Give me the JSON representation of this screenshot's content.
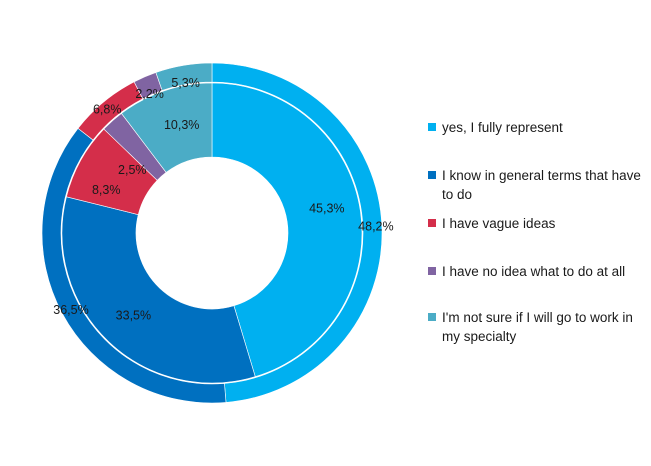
{
  "chart_data": {
    "type": "pie",
    "subtype": "double-donut",
    "title": "",
    "legend_position": "right",
    "categories": [
      "yes, I fully represent",
      "I know in general terms that have to do",
      "I have vague ideas",
      "I have no idea what to do at all",
      "I'm not sure if I will go to work in my specialty"
    ],
    "colors": [
      "#00B0F0",
      "#0070C0",
      "#D42E4A",
      "#8064A2",
      "#4BACC6"
    ],
    "series": [
      {
        "ring": "outer",
        "values": [
          48.2,
          36.5,
          6.8,
          2.2,
          5.3
        ],
        "labels": [
          "48,2%",
          "36,5%",
          "6,8%",
          "2,2%",
          "5,3%"
        ]
      },
      {
        "ring": "inner",
        "values": [
          45.3,
          33.5,
          8.3,
          2.5,
          10.3
        ],
        "labels": [
          "45,3%",
          "33,5%",
          "8,3%",
          "2,5%",
          "10,3%"
        ]
      }
    ]
  }
}
